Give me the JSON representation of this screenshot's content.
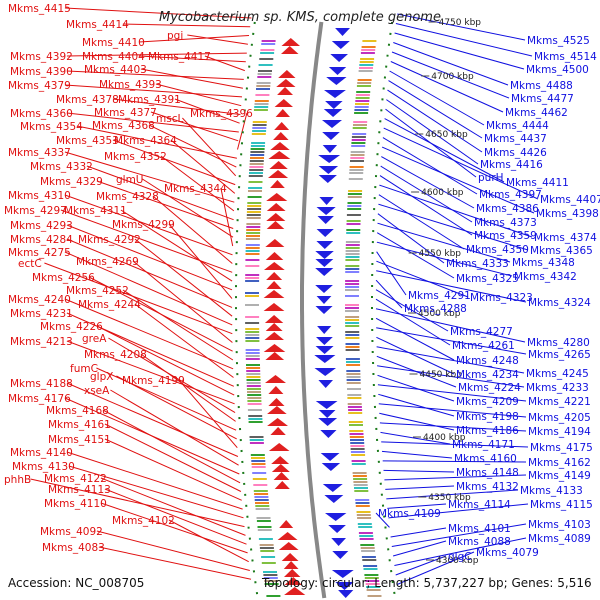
{
  "title": "Mycobacterium sp. KMS, complete genome",
  "footer": {
    "accession": "Accession: NC_008705",
    "topology": "Topology: circular; Length: 5,737,227 bp; Genes: 5,516"
  },
  "colors": {
    "forward_strand": "#e02020",
    "reverse_strand": "#1f1fe0",
    "backbone": "#888888",
    "gc_dot": "#1a7a1a",
    "label_forward": "#e01010",
    "label_reverse": "#1010e0"
  },
  "scale_ticks": [
    "4750 kbp",
    "4700 kbp",
    "4650 kbp",
    "4600 kbp",
    "4550 kbp",
    "4500 kbp",
    "4450 kbp",
    "4400 kbp",
    "4350 kbp",
    "4300 kbp"
  ],
  "left_labels": [
    "Mkms_4415",
    "Mkms_4414",
    "Mkms_4410",
    "pgi",
    "Mkms_4392",
    "Mkms_4404",
    "Mkms_4417",
    "Mkms_4390",
    "Mkms_4403",
    "Mkms_4379",
    "Mkms_4393",
    "Mkms_4378",
    "Mkms_4391",
    "Mkms_4360",
    "Mkms_4377",
    "Mkms_4396",
    "Mkms_4354",
    "Mkms_4368",
    "mscL",
    "Mkms_4353",
    "Mkms_4364",
    "Mkms_4337",
    "Mkms_4352",
    "Mkms_4332",
    "Mkms_4329",
    "glmU",
    "Mkms_4344",
    "Mkms_4310",
    "Mkms_4328",
    "Mkms_4297",
    "Mkms_4311",
    "Mkms_4293",
    "Mkms_4299",
    "Mkms_4284",
    "Mkms_4292",
    "Mkms_4275",
    "ectC",
    "Mkms_4269",
    "Mkms_4256",
    "Mkms_4252",
    "Mkms_4240",
    "Mkms_4244",
    "Mkms_4231",
    "Mkms_4226",
    "Mkms_4213",
    "greA",
    "Mkms_4208",
    "fumC",
    "glpX",
    "Mkms_4199",
    "Mkms_4188",
    "xseA",
    "Mkms_4176",
    "Mkms_4168",
    "Mkms_4161",
    "Mkms_4151",
    "Mkms_4140",
    "Mkms_4130",
    "phhB",
    "Mkms_4122",
    "Mkms_4113",
    "Mkms_4110",
    "Mkms_4102",
    "Mkms_4092",
    "Mkms_4083"
  ],
  "right_labels": [
    "Mkms_4525",
    "Mkms_4514",
    "Mkms_4500",
    "Mkms_4488",
    "Mkms_4477",
    "Mkms_4462",
    "Mkms_4444",
    "Mkms_4437",
    "Mkms_4426",
    "Mkms_4416",
    "purH",
    "Mkms_4411",
    "Mkms_4407",
    "Mkms_4397",
    "Mkms_4398",
    "Mkms_4386",
    "Mkms_4373",
    "Mkms_4359",
    "Mkms_4374",
    "Mkms_4350",
    "Mkms_4365",
    "Mkms_4333",
    "Mkms_4348",
    "Mkms_4325",
    "Mkms_4342",
    "Mkms_4291",
    "Mkms_4323",
    "Mkms_4324",
    "Mkms_4288",
    "Mkms_4277",
    "Mkms_4261",
    "Mkms_4280",
    "Mkms_4248",
    "Mkms_4265",
    "Mkms_4234",
    "Mkms_4245",
    "Mkms_4224",
    "Mkms_4233",
    "Mkms_4209",
    "Mkms_4221",
    "Mkms_4198",
    "Mkms_4205",
    "Mkms_4186",
    "Mkms_4194",
    "Mkms_4171",
    "Mkms_4175",
    "Mkms_4160",
    "Mkms_4162",
    "Mkms_4148",
    "Mkms_4149",
    "Mkms_4132",
    "Mkms_4133",
    "Mkms_4114",
    "Mkms_4115",
    "Mkms_4109",
    "Mkms_4101",
    "Mkms_4103",
    "Mkms_4088",
    "Mkms_4089",
    "glgC",
    "Mkms_4079"
  ]
}
